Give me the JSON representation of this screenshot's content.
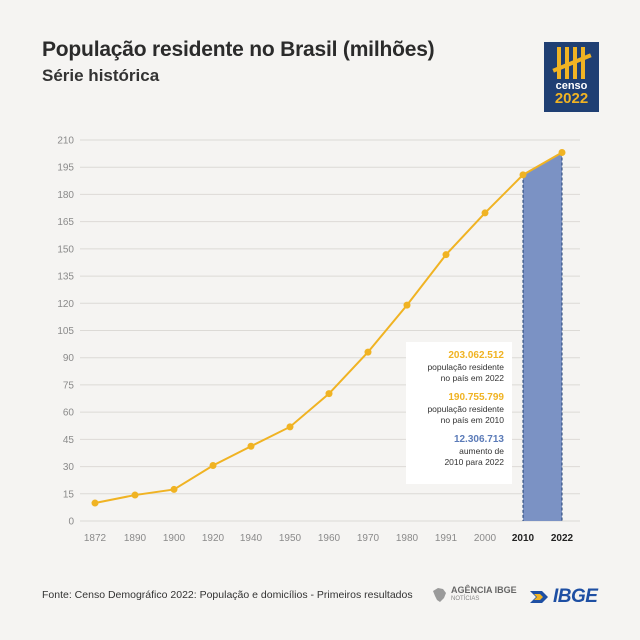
{
  "header": {
    "title": "População residente no Brasil (milhões)",
    "subtitle": "Série histórica"
  },
  "logo": {
    "icon": "censo-tally-icon",
    "text1": "censo",
    "text2": "2022"
  },
  "chart_data": {
    "type": "line",
    "title": "População residente no Brasil (milhões)",
    "subtitle": "Série histórica",
    "categories": [
      "1872",
      "1890",
      "1900",
      "1920",
      "1940",
      "1950",
      "1960",
      "1970",
      "1980",
      "1991",
      "2000",
      "2010",
      "2022"
    ],
    "values": [
      9.9,
      14.3,
      17.4,
      30.6,
      41.2,
      51.9,
      70.2,
      93.1,
      119.0,
      146.8,
      169.8,
      190.8,
      203.1
    ],
    "yticks": [
      0,
      15,
      30,
      45,
      60,
      75,
      90,
      105,
      120,
      135,
      150,
      165,
      180,
      195,
      210
    ],
    "ylim": [
      0,
      210
    ],
    "grid": true,
    "highlight": {
      "from": "2010",
      "to": "2022"
    },
    "colors": {
      "line": "#f0b323",
      "highlight": "#7b92c4",
      "highlight_line": "#1f3f73",
      "grid": "#dcdad6"
    }
  },
  "annotations": [
    {
      "value": "203.062.512",
      "label_line1": "população residente",
      "label_line2": "no país em 2022",
      "color": "yellow"
    },
    {
      "value": "190.755.799",
      "label_line1": "população residente",
      "label_line2": "no país em 2010",
      "color": "yellow"
    },
    {
      "value": "12.306.713",
      "label_line1": "aumento de",
      "label_line2": "2010 para 2022",
      "color": "blue"
    }
  ],
  "footer": {
    "source": "Fonte: Censo Demográfico 2022: População e domicílios - Primeiros resultados",
    "agencia_line1": "AGÊNCIA IBGE",
    "agencia_line2": "NOTÍCIAS",
    "ibge": "IBGE"
  }
}
